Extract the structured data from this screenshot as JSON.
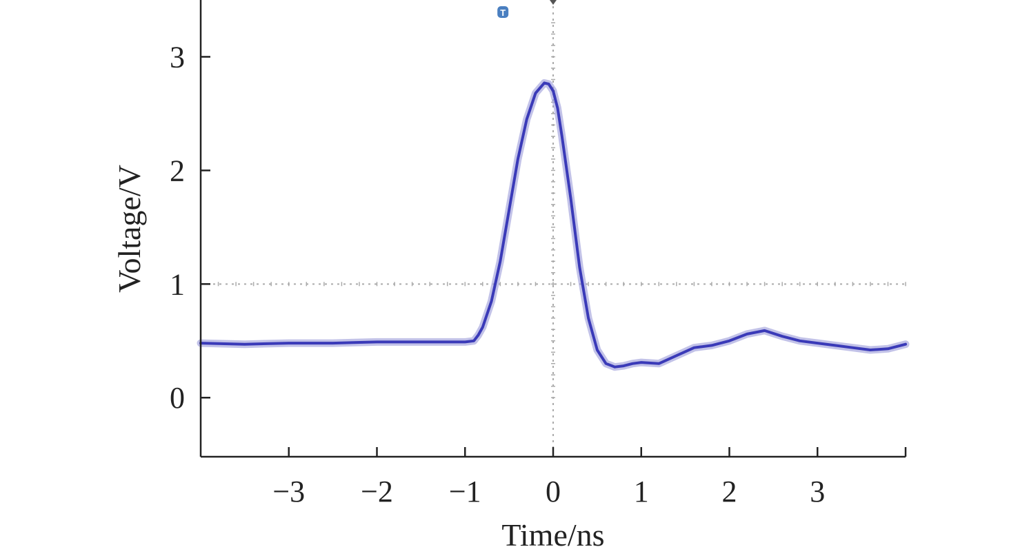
{
  "chart_data": {
    "type": "line",
    "title": "",
    "xlabel": "Time/ns",
    "ylabel": "Voltage/V",
    "xlim": [
      -4.0,
      4.0
    ],
    "ylim": [
      -0.52,
      3.5
    ],
    "x_ticks": [
      -3,
      -2,
      -1,
      0,
      1,
      2,
      3
    ],
    "x_tick_labels": [
      "−3",
      "−2",
      "−1",
      "0",
      "1",
      "2",
      "3"
    ],
    "y_ticks": [
      0,
      1,
      2,
      3
    ],
    "y_tick_labels": [
      "0",
      "1",
      "2",
      "3"
    ],
    "grid": "dotted crosshair at x=0 and y=1",
    "trigger_marker": {
      "label": "T",
      "x": -0.57
    },
    "colors": {
      "trace": "#3a3ab8",
      "trace_halo": "#9a9ad8",
      "axis": "#222222",
      "grid": "#aaaaaa",
      "marker": "#4a7fc0"
    },
    "series": [
      {
        "x": [
          -4.0,
          -3.5,
          -3.0,
          -2.5,
          -2.0,
          -1.5,
          -1.2,
          -1.0,
          -0.9,
          -0.85,
          -0.8,
          -0.7,
          -0.6,
          -0.5,
          -0.4,
          -0.3,
          -0.2,
          -0.1,
          -0.05,
          0.0,
          0.05,
          0.1,
          0.2,
          0.3,
          0.4,
          0.5,
          0.6,
          0.7,
          0.8,
          0.9,
          1.0,
          1.2,
          1.4,
          1.6,
          1.8,
          2.0,
          2.2,
          2.4,
          2.6,
          2.8,
          3.0,
          3.2,
          3.4,
          3.6,
          3.8,
          4.0
        ],
        "y": [
          0.48,
          0.47,
          0.48,
          0.48,
          0.49,
          0.49,
          0.49,
          0.49,
          0.5,
          0.55,
          0.62,
          0.85,
          1.2,
          1.65,
          2.1,
          2.45,
          2.68,
          2.77,
          2.76,
          2.7,
          2.55,
          2.3,
          1.75,
          1.15,
          0.7,
          0.42,
          0.3,
          0.27,
          0.28,
          0.3,
          0.31,
          0.3,
          0.37,
          0.44,
          0.46,
          0.5,
          0.56,
          0.59,
          0.54,
          0.5,
          0.48,
          0.46,
          0.44,
          0.42,
          0.43,
          0.47
        ]
      }
    ]
  }
}
